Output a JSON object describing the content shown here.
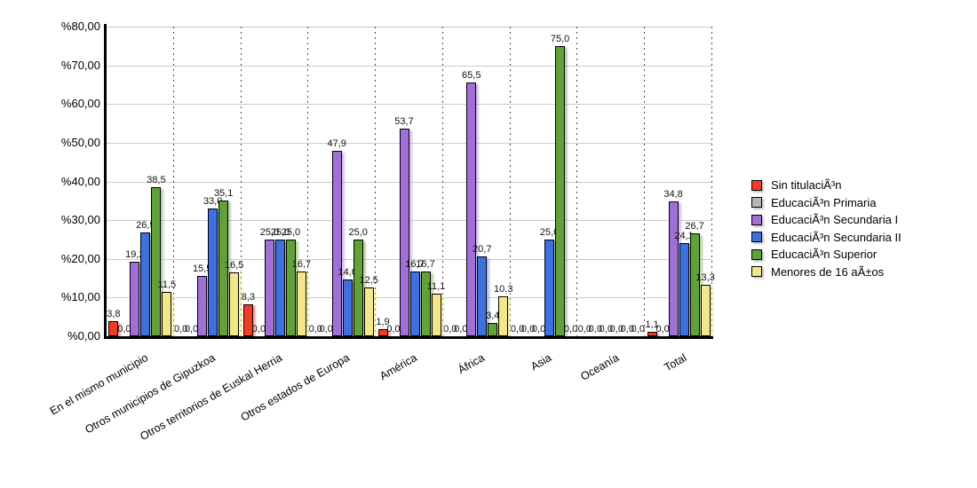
{
  "chart_data": {
    "type": "bar",
    "title": "",
    "xlabel": "",
    "ylabel": "",
    "ylim": [
      0,
      80
    ],
    "y_tick_step": 10,
    "y_ticks": [
      "%80,00",
      "%70,00",
      "%60,00",
      "%50,00",
      "%40,00",
      "%30,00",
      "%20,00",
      "%10,00",
      "%0,00"
    ],
    "grid": {
      "horizontal": "solid light gray",
      "vertical": "dotted category separators"
    },
    "legend_position": "right",
    "value_labels": "above bars, comma decimal, one digit",
    "categories": [
      "En el mismo municipio",
      "Otros municipios de Gipuzkoa",
      "Otros territorios de Euskal Herria",
      "Otros estados de Europa",
      "América",
      "África",
      "Asia",
      "Oceanía",
      "Total"
    ],
    "series": [
      {
        "name": "Sin titulaciÃ³n",
        "color": "#ef3c27",
        "shadow": "rgba(239,60,39,0.45)",
        "values": [
          3.8,
          0.0,
          8.3,
          0.0,
          1.9,
          0.0,
          0.0,
          0.0,
          1.1
        ]
      },
      {
        "name": "EducaciÃ³n Primaria",
        "color": "#b5b5b5",
        "shadow": "rgba(160,160,160,0.45)",
        "values": [
          0.0,
          0.0,
          0.0,
          0.0,
          0.0,
          0.0,
          0.0,
          0.0,
          0.0
        ]
      },
      {
        "name": "EducaciÃ³n Secundaria I",
        "color": "#a070d7",
        "shadow": "rgba(160,112,215,0.45)",
        "values": [
          19.2,
          15.5,
          25.0,
          47.9,
          53.7,
          65.5,
          0.0,
          0.0,
          34.8
        ]
      },
      {
        "name": "EducaciÃ³n Secundaria II",
        "color": "#3e71dd",
        "shadow": "rgba(62,113,221,0.45)",
        "values": [
          26.9,
          33.0,
          25.0,
          14.6,
          16.7,
          20.7,
          25.0,
          0.0,
          24.1
        ]
      },
      {
        "name": "EducaciÃ³n Superior",
        "color": "#62a13a",
        "shadow": "rgba(98,161,58,0.45)",
        "values": [
          38.5,
          35.1,
          25.0,
          25.0,
          16.7,
          3.4,
          75.0,
          0.0,
          26.7
        ]
      },
      {
        "name": "Menores de 16 aÃ±os",
        "color": "#f3e78c",
        "shadow": "rgba(243,231,140,0.6)",
        "values": [
          11.5,
          16.5,
          16.7,
          12.5,
          11.1,
          10.3,
          0.0,
          0.0,
          13.3
        ]
      }
    ]
  }
}
